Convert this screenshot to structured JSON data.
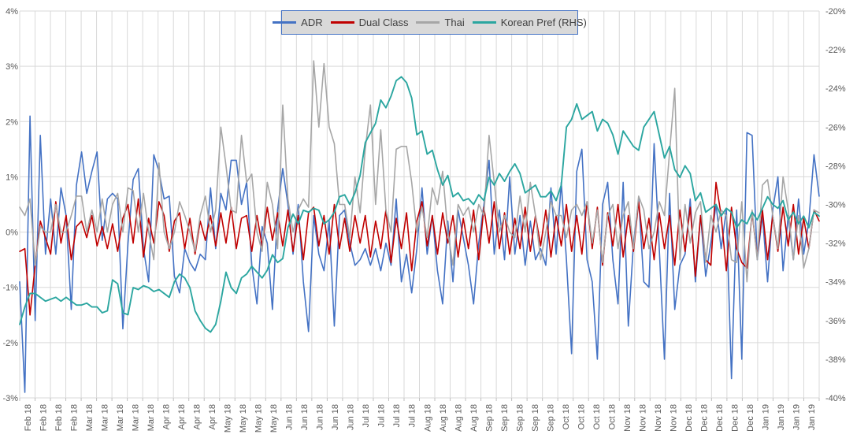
{
  "chart_data": {
    "type": "line",
    "title": "",
    "legend_position": "top-center",
    "grid": true,
    "points_per_label": 3,
    "x_labels": [
      "Feb 18",
      "Feb 18",
      "Feb 18",
      "Feb 18",
      "Mar 18",
      "Mar 18",
      "Mar 18",
      "Mar 18",
      "Mar 18",
      "Apr 18",
      "Apr 18",
      "Apr 18",
      "Apr 18",
      "May 18",
      "May 18",
      "May 18",
      "May 18",
      "Jun 18",
      "Jun 18",
      "Jun 18",
      "Jun 18",
      "Jun 18",
      "Jul 18",
      "Jul 18",
      "Jul 18",
      "Jul 18",
      "Aug 18",
      "Aug 18",
      "Aug 18",
      "Aug 18",
      "Sep 18",
      "Sep 18",
      "Sep 18",
      "Sep 18",
      "Sep 18",
      "Oct 18",
      "Oct 18",
      "Oct 18",
      "Oct 18",
      "Nov 18",
      "Nov 18",
      "Nov 18",
      "Nov 18",
      "Dec 18",
      "Dec 18",
      "Dec 18",
      "Dec 18",
      "Dec 18",
      "Jan 19",
      "Jan 19",
      "Jan 19",
      "Jan 19"
    ],
    "left_axis": {
      "min": -3,
      "max": 4,
      "ticks": [
        "4%",
        "3%",
        "2%",
        "1%",
        "0%",
        "-1%",
        "-2%",
        "-3%"
      ]
    },
    "right_axis": {
      "min": -40,
      "max": -20,
      "ticks": [
        "-20%",
        "-22%",
        "-24%",
        "-26%",
        "-28%",
        "-30%",
        "-32%",
        "-34%",
        "-36%",
        "-38%",
        "-40%"
      ]
    },
    "series": [
      {
        "name": "ADR",
        "color": "#4472C4",
        "axis": "left",
        "values": [
          -0.9,
          -2.9,
          2.1,
          -1.6,
          1.75,
          -0.4,
          0.6,
          -0.4,
          0.8,
          0.3,
          -1.4,
          0.85,
          1.45,
          0.7,
          1.1,
          1.45,
          -0.15,
          0.6,
          0.7,
          0.6,
          -1.75,
          -0.2,
          0.95,
          1.15,
          -0.3,
          -0.9,
          1.4,
          1.1,
          0.6,
          0.65,
          -0.8,
          -1.1,
          -0.3,
          -0.55,
          -0.7,
          -0.4,
          -0.5,
          0.8,
          -0.3,
          0.7,
          0.4,
          1.3,
          1.3,
          0.5,
          0.9,
          -0.6,
          -1.3,
          0.1,
          -0.2,
          -1.4,
          0.4,
          1.15,
          0.5,
          -0.4,
          0.5,
          -0.9,
          -1.8,
          0.3,
          -0.4,
          -0.7,
          0.2,
          -1.7,
          0.3,
          0.4,
          -0.2,
          -0.6,
          -0.5,
          -0.3,
          -0.6,
          -0.3,
          -0.7,
          -0.2,
          -0.6,
          0.6,
          -0.9,
          -0.4,
          -1.1,
          -0.3,
          0.8,
          -0.4,
          0.3,
          -0.7,
          -1.3,
          0.2,
          -0.9,
          0.4,
          -0.1,
          -0.6,
          -1.3,
          -0.2,
          0.5,
          1.3,
          -0.4,
          0.4,
          -0.5,
          1.0,
          -0.4,
          0.3,
          -0.6,
          0.2,
          -0.5,
          -0.3,
          -0.6,
          0.8,
          -0.4,
          0.9,
          -0.5,
          -2.2,
          1.1,
          1.5,
          -0.5,
          -0.9,
          -2.3,
          0.5,
          0.9,
          -0.5,
          -1.3,
          0.9,
          -1.7,
          -0.2,
          0.6,
          -0.9,
          -1.0,
          1.6,
          -0.3,
          -2.3,
          0.7,
          -1.4,
          -0.6,
          -0.4,
          0.6,
          -0.9,
          0.3,
          -0.8,
          -0.2,
          0.5,
          -0.3,
          0.4,
          -2.65,
          0.4,
          -2.3,
          1.8,
          1.75,
          -0.5,
          0.3,
          -0.9,
          0.4,
          1.0,
          -0.7,
          0.3,
          -0.5,
          0.6,
          -0.4,
          0.2,
          1.4,
          0.65
        ]
      },
      {
        "name": "Dual Class",
        "color": "#C00000",
        "axis": "left",
        "values": [
          -0.35,
          -0.3,
          -1.5,
          -0.6,
          0.2,
          -0.1,
          -0.4,
          0.55,
          -0.2,
          0.3,
          -0.5,
          0.1,
          0.2,
          -0.1,
          0.3,
          -0.25,
          0.1,
          -0.3,
          0.15,
          -0.35,
          0.25,
          0.5,
          -0.2,
          0.6,
          -0.45,
          0.25,
          -0.2,
          0.55,
          0.3,
          -0.35,
          0.2,
          0.35,
          -0.3,
          0.25,
          -0.4,
          0.2,
          -0.15,
          0.3,
          -0.25,
          0.35,
          -0.2,
          0.45,
          -0.3,
          0.25,
          0.3,
          -0.35,
          0.3,
          -0.25,
          0.45,
          -0.15,
          0.35,
          -0.25,
          0.4,
          -0.35,
          0.3,
          -0.5,
          0.35,
          0.45,
          -0.25,
          0.3,
          -0.4,
          0.5,
          -0.3,
          0.25,
          -0.35,
          0.3,
          -0.2,
          0.3,
          -0.45,
          0.2,
          -0.3,
          0.4,
          -0.55,
          0.25,
          -0.3,
          0.35,
          -0.7,
          0.2,
          0.55,
          -0.25,
          0.3,
          -0.4,
          0.35,
          -0.2,
          0.3,
          -0.45,
          0.25,
          -0.3,
          0.4,
          -0.5,
          0.45,
          -0.2,
          0.55,
          -0.3,
          0.35,
          -0.4,
          0.25,
          -0.3,
          0.45,
          -0.35,
          0.3,
          -0.25,
          0.4,
          -0.45,
          0.3,
          -0.25,
          0.5,
          -0.35,
          0.3,
          -0.4,
          0.55,
          -0.3,
          0.45,
          -0.6,
          0.35,
          -0.25,
          0.5,
          -0.45,
          0.3,
          -0.35,
          0.55,
          -0.3,
          0.25,
          -0.5,
          0.35,
          -0.3,
          0.3,
          -0.6,
          0.4,
          -0.35,
          0.45,
          -0.8,
          0.3,
          -0.5,
          -0.6,
          0.9,
          0.3,
          -0.7,
          0.45,
          -0.3,
          -0.55,
          -0.65,
          0.35,
          -0.45,
          0.4,
          -0.5,
          0.3,
          -0.35,
          0.45,
          -0.25,
          0.5,
          -0.4,
          0.25,
          -0.3,
          0.4,
          0.2
        ]
      },
      {
        "name": "Thai",
        "color": "#A6A6A6",
        "axis": "left",
        "values": [
          0.45,
          0.3,
          0.6,
          -0.6,
          0.1,
          0.0,
          0.0,
          0.5,
          0.0,
          0.0,
          0.3,
          0.65,
          0.65,
          0.0,
          0.4,
          0.0,
          0.6,
          0.0,
          0.5,
          0.7,
          0.0,
          0.8,
          0.75,
          0.0,
          0.7,
          0.0,
          -0.5,
          1.25,
          0.0,
          -0.3,
          0.0,
          0.55,
          0.3,
          0.0,
          -0.35,
          0.3,
          0.65,
          0.0,
          0.4,
          1.9,
          1.2,
          0.4,
          0.35,
          1.75,
          0.9,
          1.05,
          0.0,
          -0.35,
          0.9,
          0.5,
          -0.3,
          2.3,
          0.6,
          0.0,
          0.4,
          0.6,
          0.45,
          3.1,
          1.9,
          3.05,
          1.9,
          1.6,
          0.5,
          0.5,
          -0.1,
          1.0,
          0.35,
          1.5,
          2.3,
          0.5,
          1.85,
          0.4,
          0.0,
          1.5,
          1.55,
          1.55,
          0.9,
          0.0,
          0.45,
          -0.1,
          0.8,
          0.5,
          1.1,
          0.0,
          -0.6,
          0.5,
          0.3,
          0.45,
          0.0,
          0.5,
          0.3,
          1.75,
          0.9,
          0.0,
          0.3,
          0.0,
          -0.1,
          0.65,
          0.0,
          0.9,
          0.3,
          -0.5,
          0.0,
          0.55,
          0.3,
          0.3,
          -0.1,
          0.4,
          0.5,
          0.3,
          0.55,
          -0.2,
          0.4,
          -0.55,
          0.3,
          0.5,
          -0.3,
          0.3,
          0.55,
          -0.3,
          0.65,
          0.4,
          -0.3,
          0.0,
          0.55,
          0.3,
          1.45,
          2.6,
          -0.5,
          0.5,
          -0.2,
          0.35,
          0.55,
          -0.55,
          0.3,
          0.0,
          0.4,
          0.3,
          -0.5,
          -0.55,
          0.55,
          -0.9,
          0.4,
          -0.5,
          0.85,
          0.95,
          0.3,
          -0.3,
          1.0,
          0.4,
          -0.5,
          0.3,
          -0.65,
          -0.3,
          0.4,
          0.35
        ]
      },
      {
        "name": "Korean Pref (RHS)",
        "color": "#2BA6A0",
        "axis": "right",
        "values": [
          -36.2,
          -35.3,
          -34.6,
          -34.6,
          -34.8,
          -35.0,
          -34.9,
          -34.8,
          -35.0,
          -34.8,
          -35.0,
          -35.2,
          -35.2,
          -35.1,
          -35.3,
          -35.3,
          -35.6,
          -35.5,
          -33.9,
          -34.1,
          -35.6,
          -35.7,
          -34.3,
          -34.4,
          -34.2,
          -34.3,
          -34.5,
          -34.4,
          -34.6,
          -34.8,
          -34.0,
          -33.6,
          -33.8,
          -34.3,
          -35.5,
          -36.0,
          -36.4,
          -36.6,
          -36.2,
          -35.0,
          -33.5,
          -34.3,
          -34.6,
          -33.8,
          -33.6,
          -33.2,
          -33.5,
          -33.8,
          -33.4,
          -32.6,
          -33.0,
          -32.8,
          -31.2,
          -30.5,
          -31.0,
          -30.3,
          -30.4,
          -30.2,
          -30.3,
          -31.0,
          -30.8,
          -30.4,
          -29.6,
          -29.5,
          -30.0,
          -29.4,
          -28.5,
          -26.8,
          -26.3,
          -25.8,
          -24.6,
          -25.0,
          -24.4,
          -23.6,
          -23.4,
          -23.7,
          -24.5,
          -26.4,
          -26.2,
          -27.4,
          -27.2,
          -28.2,
          -29.0,
          -28.5,
          -29.6,
          -29.4,
          -29.8,
          -29.7,
          -30.0,
          -29.5,
          -29.8,
          -28.6,
          -29.0,
          -28.4,
          -28.8,
          -28.3,
          -27.9,
          -28.4,
          -29.4,
          -29.2,
          -29.0,
          -29.6,
          -29.6,
          -29.3,
          -29.8,
          -29.0,
          -26.0,
          -25.6,
          -24.8,
          -25.6,
          -25.4,
          -25.2,
          -26.2,
          -25.6,
          -25.8,
          -26.4,
          -27.4,
          -26.2,
          -26.6,
          -27.0,
          -27.2,
          -26.0,
          -25.6,
          -25.2,
          -26.4,
          -27.6,
          -27.0,
          -28.2,
          -28.6,
          -28.0,
          -28.4,
          -29.8,
          -29.4,
          -30.4,
          -30.2,
          -30.0,
          -30.6,
          -30.2,
          -30.4,
          -31.2,
          -30.8,
          -31.0,
          -30.4,
          -30.8,
          -30.2,
          -29.6,
          -30.0,
          -30.2,
          -29.8,
          -30.8,
          -30.4,
          -31.0,
          -30.6,
          -31.2,
          -30.4,
          -30.6
        ]
      }
    ]
  },
  "colors": {
    "background": "#FFFFFF",
    "grid": "#D9D9D9",
    "tick": "#BFBFBF",
    "axis_text": "#595959",
    "legend_bg": "#D9D9D9",
    "legend_border": "#4472C4",
    "legend_text": "#3F3F3F"
  }
}
